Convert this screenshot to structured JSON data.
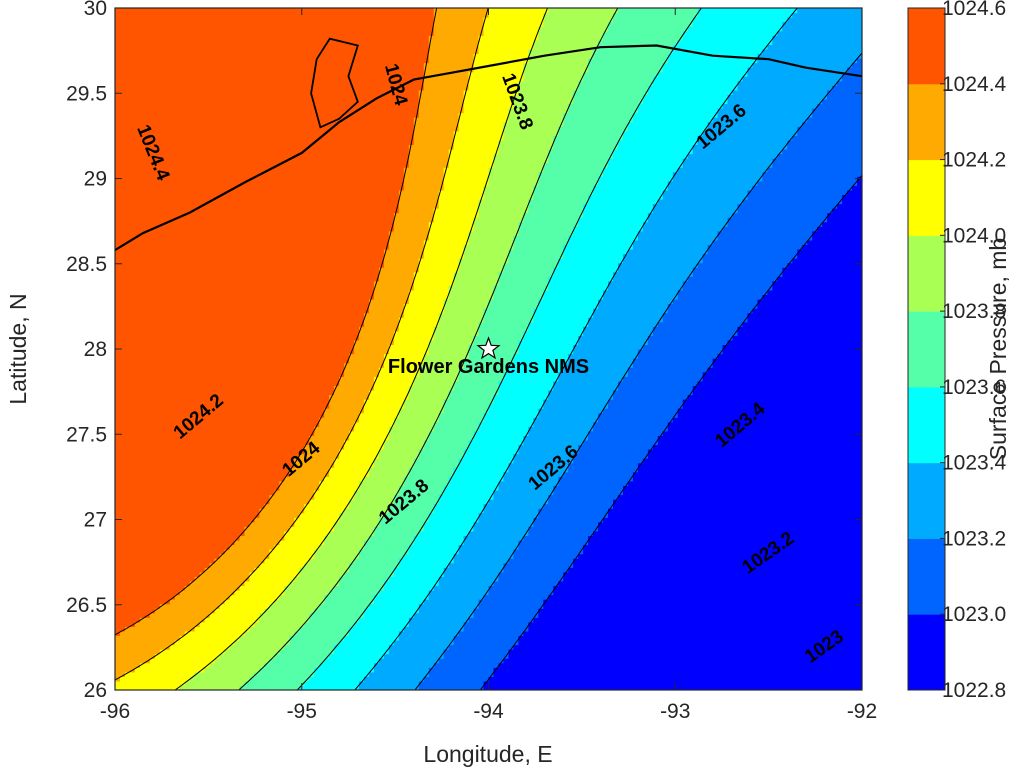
{
  "chart_data": {
    "type": "contour",
    "xlabel": "Longitude, E",
    "ylabel": "Latitude, N",
    "xlim": [
      -96,
      -92
    ],
    "ylim": [
      26,
      30
    ],
    "x_ticks": [
      -96,
      -95,
      -94,
      -93,
      -92
    ],
    "y_ticks": [
      26,
      26.5,
      27,
      27.5,
      28,
      28.5,
      29,
      29.5,
      30
    ],
    "x_tick_labels": [
      "-96",
      "-95",
      "-94",
      "-93",
      "-92"
    ],
    "y_tick_labels": [
      "26",
      "26.5",
      "27",
      "27.5",
      "28",
      "28.5",
      "29",
      "29.5",
      "30"
    ],
    "colorbar": {
      "label": "Surface Pressure, mb",
      "range": [
        1022.8,
        1024.6
      ],
      "ticks": [
        1022.8,
        1023.0,
        1023.2,
        1023.4,
        1023.6,
        1023.8,
        1024.0,
        1024.2,
        1024.4,
        1024.6
      ],
      "tick_labels": [
        "1022.8",
        "1023.0",
        "1023.2",
        "1023.4",
        "1023.6",
        "1023.8",
        "1024.0",
        "1024.2",
        "1024.4",
        "1024.6"
      ],
      "colors": [
        "#0000ff",
        "#0064ff",
        "#00aaff",
        "#00ffff",
        "#55ffaa",
        "#aaff55",
        "#ffff00",
        "#ffaa00",
        "#ff5500"
      ]
    },
    "contour_levels": [
      1023,
      1023.2,
      1023.4,
      1023.6,
      1023.8,
      1024,
      1024.2,
      1024.4
    ],
    "contour_labels": [
      {
        "text": "1024.4",
        "lon": -95.8,
        "lat": 29.15,
        "angle": 68
      },
      {
        "text": "1024",
        "lon": -94.5,
        "lat": 29.55,
        "angle": 75
      },
      {
        "text": "1023.8",
        "lon": -93.85,
        "lat": 29.45,
        "angle": 70
      },
      {
        "text": "1023.6",
        "lon": -92.75,
        "lat": 29.3,
        "angle": -40
      },
      {
        "text": "1024.2",
        "lon": -95.55,
        "lat": 27.6,
        "angle": -40
      },
      {
        "text": "1024",
        "lon": -95.0,
        "lat": 27.35,
        "angle": -40
      },
      {
        "text": "1023.8",
        "lon": -94.45,
        "lat": 27.1,
        "angle": -40
      },
      {
        "text": "1023.6",
        "lon": -93.65,
        "lat": 27.3,
        "angle": -40
      },
      {
        "text": "1023.4",
        "lon": -92.65,
        "lat": 27.55,
        "angle": -40
      },
      {
        "text": "1023.2",
        "lon": -92.5,
        "lat": 26.8,
        "angle": -35
      },
      {
        "text": "1023",
        "lon": -92.2,
        "lat": 26.25,
        "angle": -35
      }
    ],
    "annotation": {
      "text": "Flower Gardens NMS",
      "lon": -94.0,
      "lat": 28.0,
      "marker": "star-icon"
    }
  }
}
